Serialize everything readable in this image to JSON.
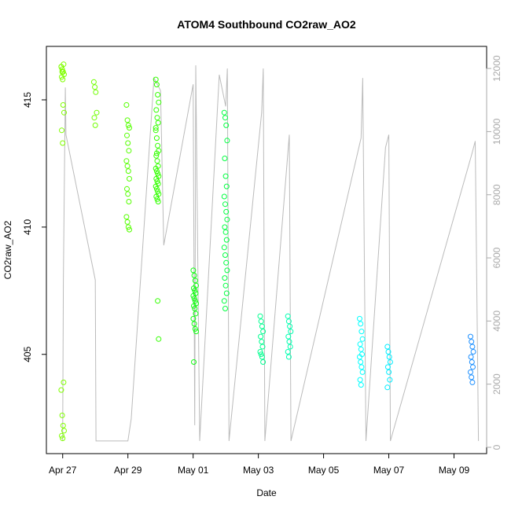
{
  "chart_data": {
    "type": "scatter",
    "title": "ATOM4 Southbound CO2raw_AO2",
    "xlabel": "Date",
    "ylabel": "CO2raw_AO2",
    "x_ticks": [
      "Apr 27",
      "Apr 29",
      "May 01",
      "May 03",
      "May 05",
      "May 07",
      "May 09"
    ],
    "x_tick_days": [
      0,
      2,
      4,
      6,
      8,
      10,
      12
    ],
    "xlim_days": [
      -0.5,
      13.0
    ],
    "y_ticks": [
      405,
      410,
      415
    ],
    "ylim": [
      401.1,
      417.1
    ],
    "y2_ticks": [
      0,
      2000,
      4000,
      6000,
      8000,
      10000,
      12000
    ],
    "y2lim": [
      -200,
      12700
    ],
    "grid": false,
    "series": [
      {
        "kind": "scatter-clusters",
        "clusters": [
          {
            "day": 0.0,
            "color": "#80ff00",
            "values": [
              416.3,
              416.2,
              416.1,
              416.0,
              415.9,
              415.8,
              416.4,
              416.3,
              416.1,
              414.8,
              414.5,
              413.8,
              413.3,
              403.9,
              403.6,
              402.6,
              402.2,
              402.0,
              401.8,
              401.7
            ]
          },
          {
            "day": 1.0,
            "color": "#70ff00",
            "values": [
              415.7,
              415.5,
              415.3,
              414.5,
              414.3,
              414.0
            ]
          },
          {
            "day": 2.0,
            "color": "#55ff00",
            "values": [
              414.8,
              414.2,
              414.0,
              413.9,
              413.6,
              413.3,
              413.0,
              412.6,
              412.4,
              412.2,
              411.9,
              411.5,
              411.3,
              411.0,
              410.4,
              410.2,
              410.0,
              409.9
            ]
          },
          {
            "day": 2.9,
            "color": "#33ff00",
            "values": [
              415.8,
              415.6,
              415.2,
              414.9,
              414.6,
              414.3,
              414.1,
              413.8,
              413.5,
              413.2,
              413.0,
              412.8,
              412.6,
              412.4,
              412.3,
              412.2,
              412.1,
              412.0,
              411.9,
              411.8,
              411.7,
              411.6,
              411.5,
              411.4,
              411.3,
              411.2,
              411.1,
              411.0,
              413.9,
              412.9,
              407.1,
              405.6
            ]
          },
          {
            "day": 4.05,
            "color": "#10ff10",
            "values": [
              408.3,
              408.1,
              407.9,
              407.7,
              407.6,
              407.5,
              407.4,
              407.3,
              407.2,
              407.1,
              407.0,
              406.9,
              406.8,
              406.6,
              406.4,
              406.2,
              406.0,
              405.9,
              404.7
            ]
          },
          {
            "day": 5.0,
            "color": "#00ff40",
            "values": [
              414.5,
              414.3,
              414.0,
              413.4,
              412.7,
              412.0,
              411.6,
              411.2,
              410.9,
              410.6,
              410.3,
              410.0,
              409.8,
              409.5,
              409.2,
              408.9,
              408.6,
              408.3,
              408.0,
              407.7,
              407.4,
              407.1,
              406.8
            ]
          },
          {
            "day": 6.1,
            "color": "#00ff90",
            "values": [
              406.5,
              406.3,
              406.1,
              405.9,
              405.7,
              405.5,
              405.3,
              405.1,
              405.0,
              404.9,
              404.7
            ]
          },
          {
            "day": 6.95,
            "color": "#00ffb0",
            "values": [
              406.5,
              406.3,
              406.1,
              405.9,
              405.7,
              405.5,
              405.3,
              405.1,
              404.9
            ]
          },
          {
            "day": 9.15,
            "color": "#00ffff",
            "values": [
              406.4,
              406.2,
              405.9,
              405.6,
              405.4,
              405.2,
              405.0,
              404.9,
              404.7,
              404.5,
              404.3,
              404.0,
              403.8
            ]
          },
          {
            "day": 10.0,
            "color": "#00eeff",
            "values": [
              405.3,
              405.1,
              404.9,
              404.7,
              404.5,
              404.3,
              404.0,
              403.7
            ]
          },
          {
            "day": 12.55,
            "color": "#1e90ff",
            "values": [
              405.7,
              405.5,
              405.3,
              405.1,
              404.9,
              404.7,
              404.5,
              404.3,
              404.1,
              403.9
            ]
          }
        ]
      },
      {
        "kind": "secondary-line",
        "color": "#bbbbbb",
        "points": [
          [
            0.0,
            200
          ],
          [
            0.02,
            5300
          ],
          [
            0.08,
            11400
          ],
          [
            0.1,
            9900
          ],
          [
            1.0,
            5300
          ],
          [
            1.02,
            200
          ],
          [
            2.0,
            200
          ],
          [
            2.1,
            900
          ],
          [
            2.8,
            11700
          ],
          [
            3.0,
            11300
          ],
          [
            3.1,
            6400
          ],
          [
            4.0,
            11500
          ],
          [
            4.05,
            700
          ],
          [
            4.08,
            12100
          ],
          [
            4.2,
            200
          ],
          [
            4.8,
            11800
          ],
          [
            5.0,
            10800
          ],
          [
            5.05,
            12000
          ],
          [
            5.1,
            200
          ],
          [
            6.1,
            10600
          ],
          [
            6.15,
            12000
          ],
          [
            6.2,
            200
          ],
          [
            6.95,
            9900
          ],
          [
            7.0,
            200
          ],
          [
            9.15,
            9800
          ],
          [
            9.2,
            11700
          ],
          [
            9.3,
            200
          ],
          [
            9.9,
            9500
          ],
          [
            10.0,
            9900
          ],
          [
            10.05,
            200
          ],
          [
            12.55,
            9300
          ],
          [
            12.65,
            9700
          ],
          [
            12.75,
            200
          ]
        ]
      }
    ]
  }
}
